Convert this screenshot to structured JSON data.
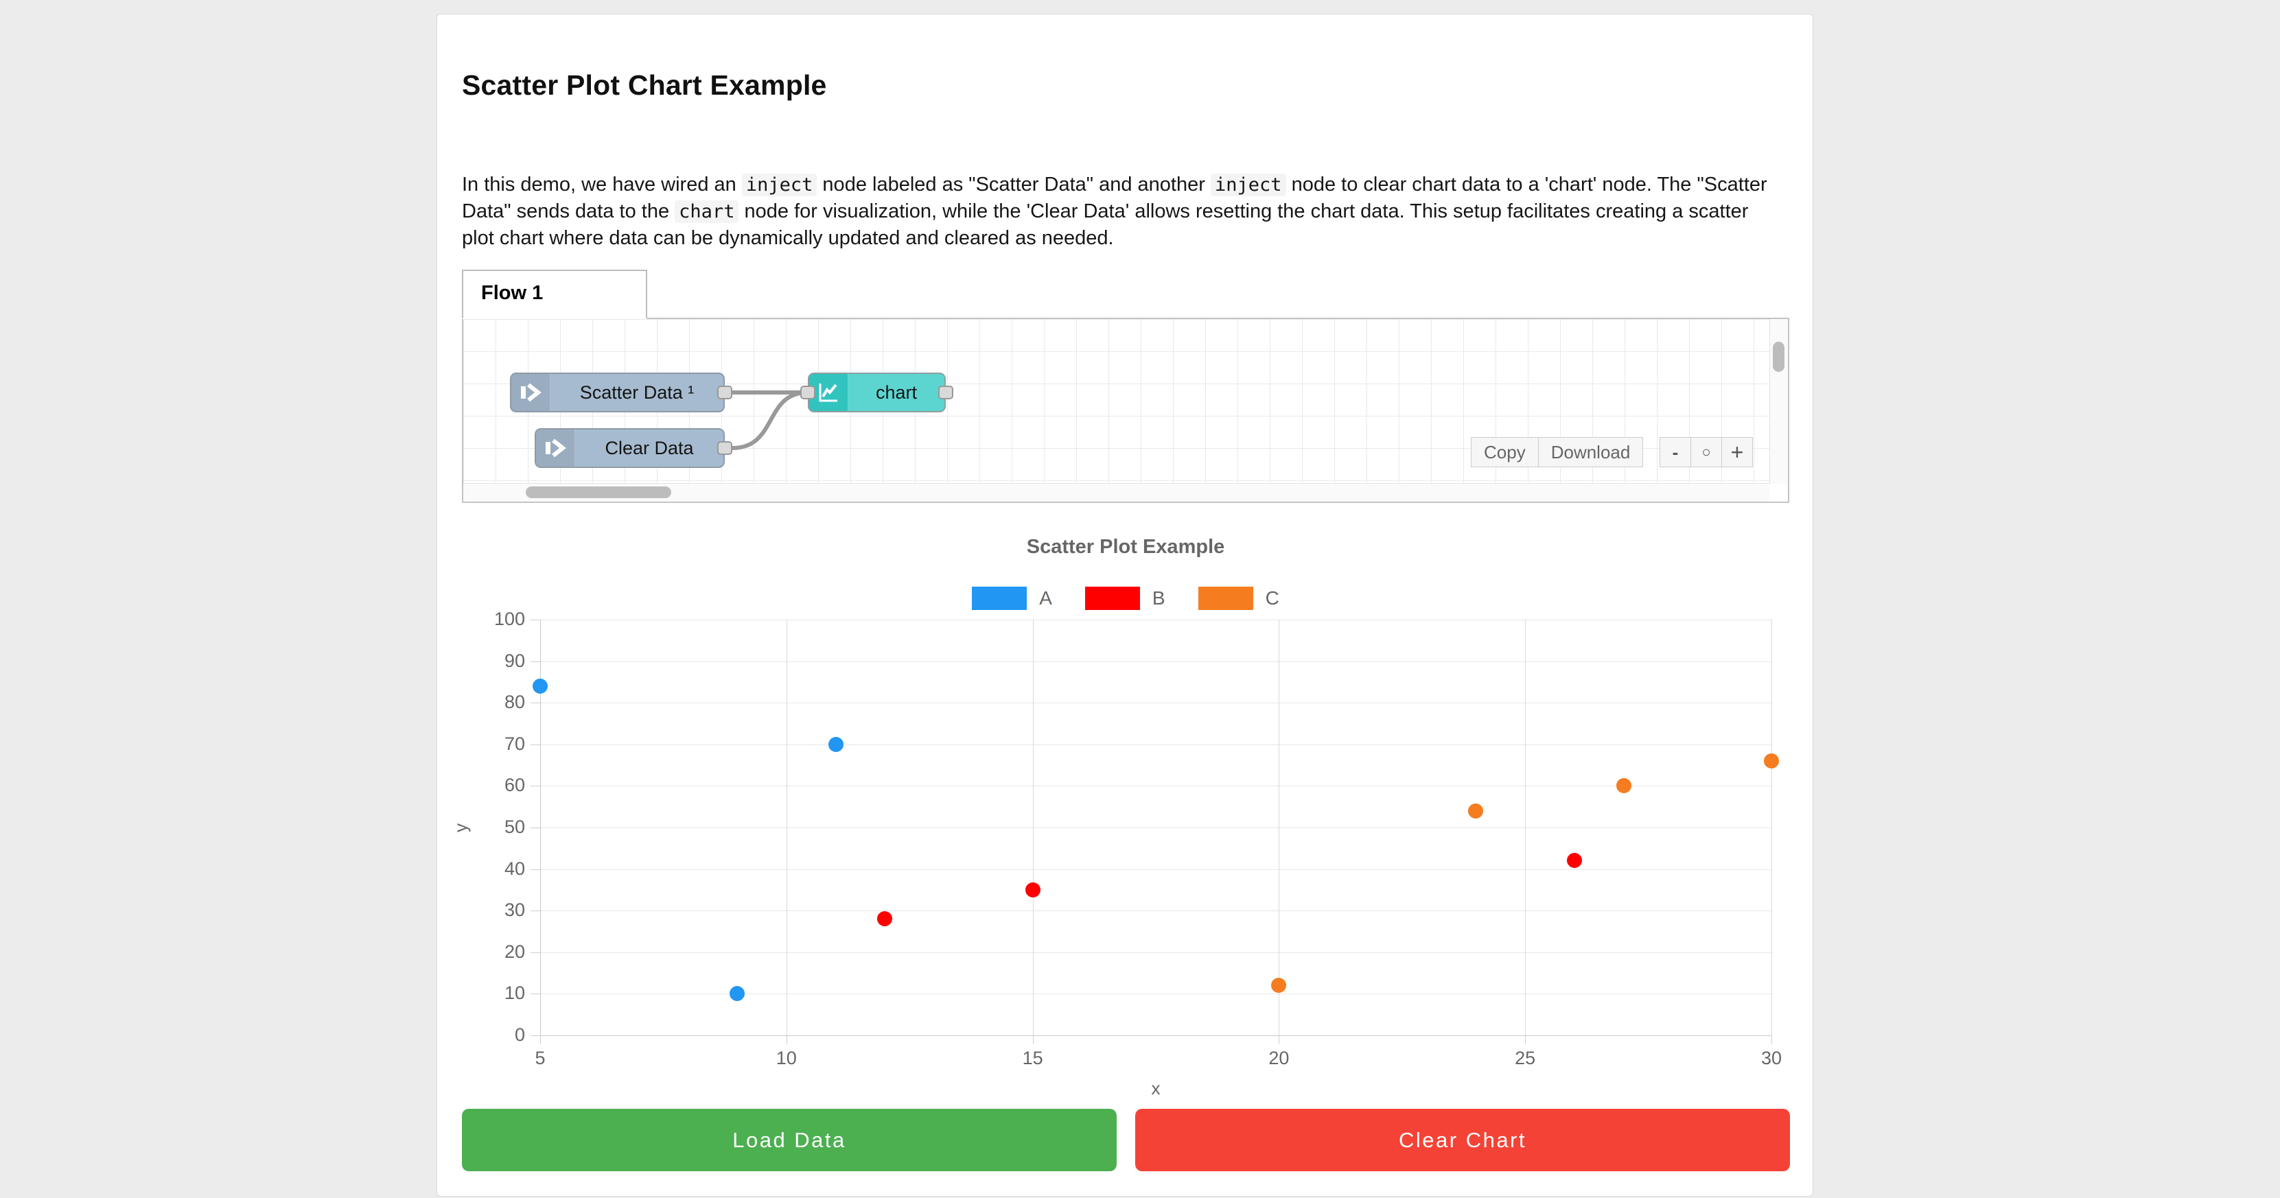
{
  "page": {
    "background": "#ececec",
    "title": "Scatter Plot Chart Example",
    "description_segments": [
      {
        "type": "text",
        "value": "In this demo, we have wired an "
      },
      {
        "type": "code",
        "value": "inject"
      },
      {
        "type": "text",
        "value": " node labeled as \"Scatter Data\" and another "
      },
      {
        "type": "code",
        "value": "inject"
      },
      {
        "type": "text",
        "value": " node to clear chart data to a 'chart' node. The \"Scatter Data\" sends data to the "
      },
      {
        "type": "code",
        "value": "chart"
      },
      {
        "type": "text",
        "value": " node for visualization, while the 'Clear Data' allows resetting the chart data. This setup facilitates creating a scatter plot chart where data can be dynamically updated and cleared as needed."
      }
    ]
  },
  "flow": {
    "tab_label": "Flow 1",
    "nodes": {
      "scatter": {
        "label": "Scatter Data ¹",
        "type": "inject",
        "color": "#a6bbcf"
      },
      "clear": {
        "label": "Clear Data",
        "type": "inject",
        "color": "#a6bbcf"
      },
      "chart": {
        "label": "chart",
        "type": "chart",
        "color": "#5cd5d1"
      }
    },
    "toolbar": {
      "copy": "Copy",
      "download": "Download"
    },
    "zoom_controls": {
      "zoom_out": "-",
      "zoom_reset": "○",
      "zoom_in": "+"
    }
  },
  "chart_data": {
    "type": "scatter",
    "title": "Scatter Plot Example",
    "xlabel": "x",
    "ylabel": "y",
    "xlim": [
      5,
      30
    ],
    "ylim": [
      0,
      100
    ],
    "x_ticks": [
      5,
      10,
      15,
      20,
      25,
      30
    ],
    "y_ticks": [
      0,
      10,
      20,
      30,
      40,
      50,
      60,
      70,
      80,
      90,
      100
    ],
    "grid": true,
    "legend_position": "top-center",
    "series": [
      {
        "name": "A",
        "color": "#2196f3",
        "points": [
          [
            5,
            84
          ],
          [
            9,
            10
          ],
          [
            11,
            70
          ]
        ]
      },
      {
        "name": "B",
        "color": "#ff0000",
        "points": [
          [
            12,
            28
          ],
          [
            15,
            35
          ],
          [
            26,
            42
          ]
        ]
      },
      {
        "name": "C",
        "color": "#f57c1f",
        "points": [
          [
            20,
            12
          ],
          [
            24,
            54
          ],
          [
            27,
            60
          ],
          [
            30,
            66
          ]
        ]
      }
    ]
  },
  "actions": {
    "load_label": "Load Data",
    "clear_label": "Clear Chart"
  }
}
